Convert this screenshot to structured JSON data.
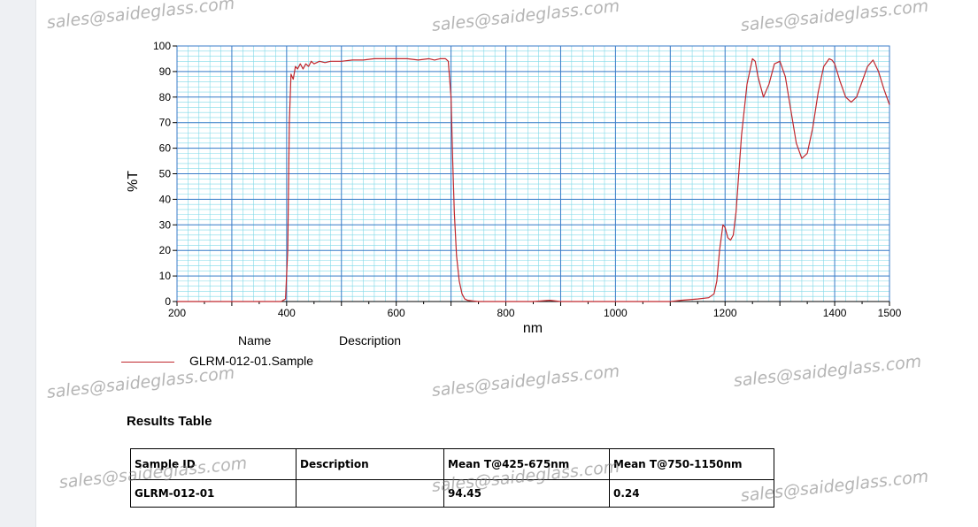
{
  "chart_data": {
    "type": "line",
    "xlabel": "nm",
    "ylabel": "%T",
    "xlim": [
      200,
      1500
    ],
    "ylim": [
      0,
      100
    ],
    "x_ticks": [
      200,
      400,
      600,
      800,
      1000,
      1200,
      1400,
      1500
    ],
    "y_ticks": [
      0,
      10,
      20,
      30,
      40,
      50,
      60,
      70,
      80,
      90,
      100
    ],
    "grid": true,
    "legend_position": "bottom-left",
    "series": [
      {
        "name": "GLRM-012-01.Sample",
        "color": "#c0272d",
        "x": [
          200,
          390,
          398,
          402,
          405,
          408,
          412,
          416,
          420,
          425,
          430,
          435,
          440,
          445,
          450,
          460,
          470,
          480,
          500,
          520,
          540,
          560,
          580,
          600,
          620,
          640,
          660,
          670,
          680,
          690,
          695,
          700,
          703,
          706,
          710,
          715,
          720,
          725,
          730,
          740,
          750,
          780,
          800,
          850,
          880,
          900,
          950,
          1000,
          1050,
          1100,
          1120,
          1150,
          1170,
          1180,
          1185,
          1190,
          1196,
          1200,
          1205,
          1210,
          1215,
          1220,
          1225,
          1230,
          1240,
          1250,
          1255,
          1260,
          1270,
          1280,
          1290,
          1300,
          1310,
          1320,
          1330,
          1340,
          1350,
          1360,
          1370,
          1380,
          1390,
          1395,
          1400,
          1410,
          1420,
          1430,
          1440,
          1450,
          1460,
          1470,
          1480,
          1490,
          1500
        ],
        "values": [
          0,
          0,
          1,
          20,
          70,
          89,
          87,
          92,
          91,
          93,
          91,
          93,
          92,
          94,
          93,
          94,
          93.5,
          94,
          94,
          94.5,
          94.5,
          95,
          95,
          95,
          95,
          94.5,
          95,
          94.5,
          95,
          95,
          94,
          80,
          55,
          35,
          18,
          8,
          3,
          1,
          0.5,
          0.2,
          0,
          0,
          0,
          0,
          0.5,
          0,
          0,
          0,
          0,
          0,
          0.5,
          1,
          1.5,
          3,
          8,
          20,
          30,
          29,
          25,
          24,
          26,
          35,
          50,
          65,
          85,
          95,
          94,
          88,
          80,
          85,
          93,
          94,
          88,
          75,
          62,
          56,
          58,
          68,
          82,
          92,
          95,
          94.5,
          93,
          86,
          80,
          78,
          80,
          86,
          92,
          94.5,
          90,
          83,
          77
        ]
      }
    ]
  },
  "legend": {
    "name_header": "Name",
    "description_header": "Description",
    "sample_name": "GLRM-012-01.Sample"
  },
  "results": {
    "title": "Results Table",
    "headers": [
      "Sample ID",
      "Description",
      "Mean T@425-675nm",
      "Mean T@750-1150nm"
    ],
    "rows": [
      [
        "GLRM-012-01",
        "",
        "94.45",
        "0.24"
      ]
    ]
  },
  "watermark": "sales@saideglass.com",
  "colors": {
    "grid_major": "#3a7bc8",
    "grid_minor": "#7fd9e8",
    "curve": "#c0272d"
  }
}
